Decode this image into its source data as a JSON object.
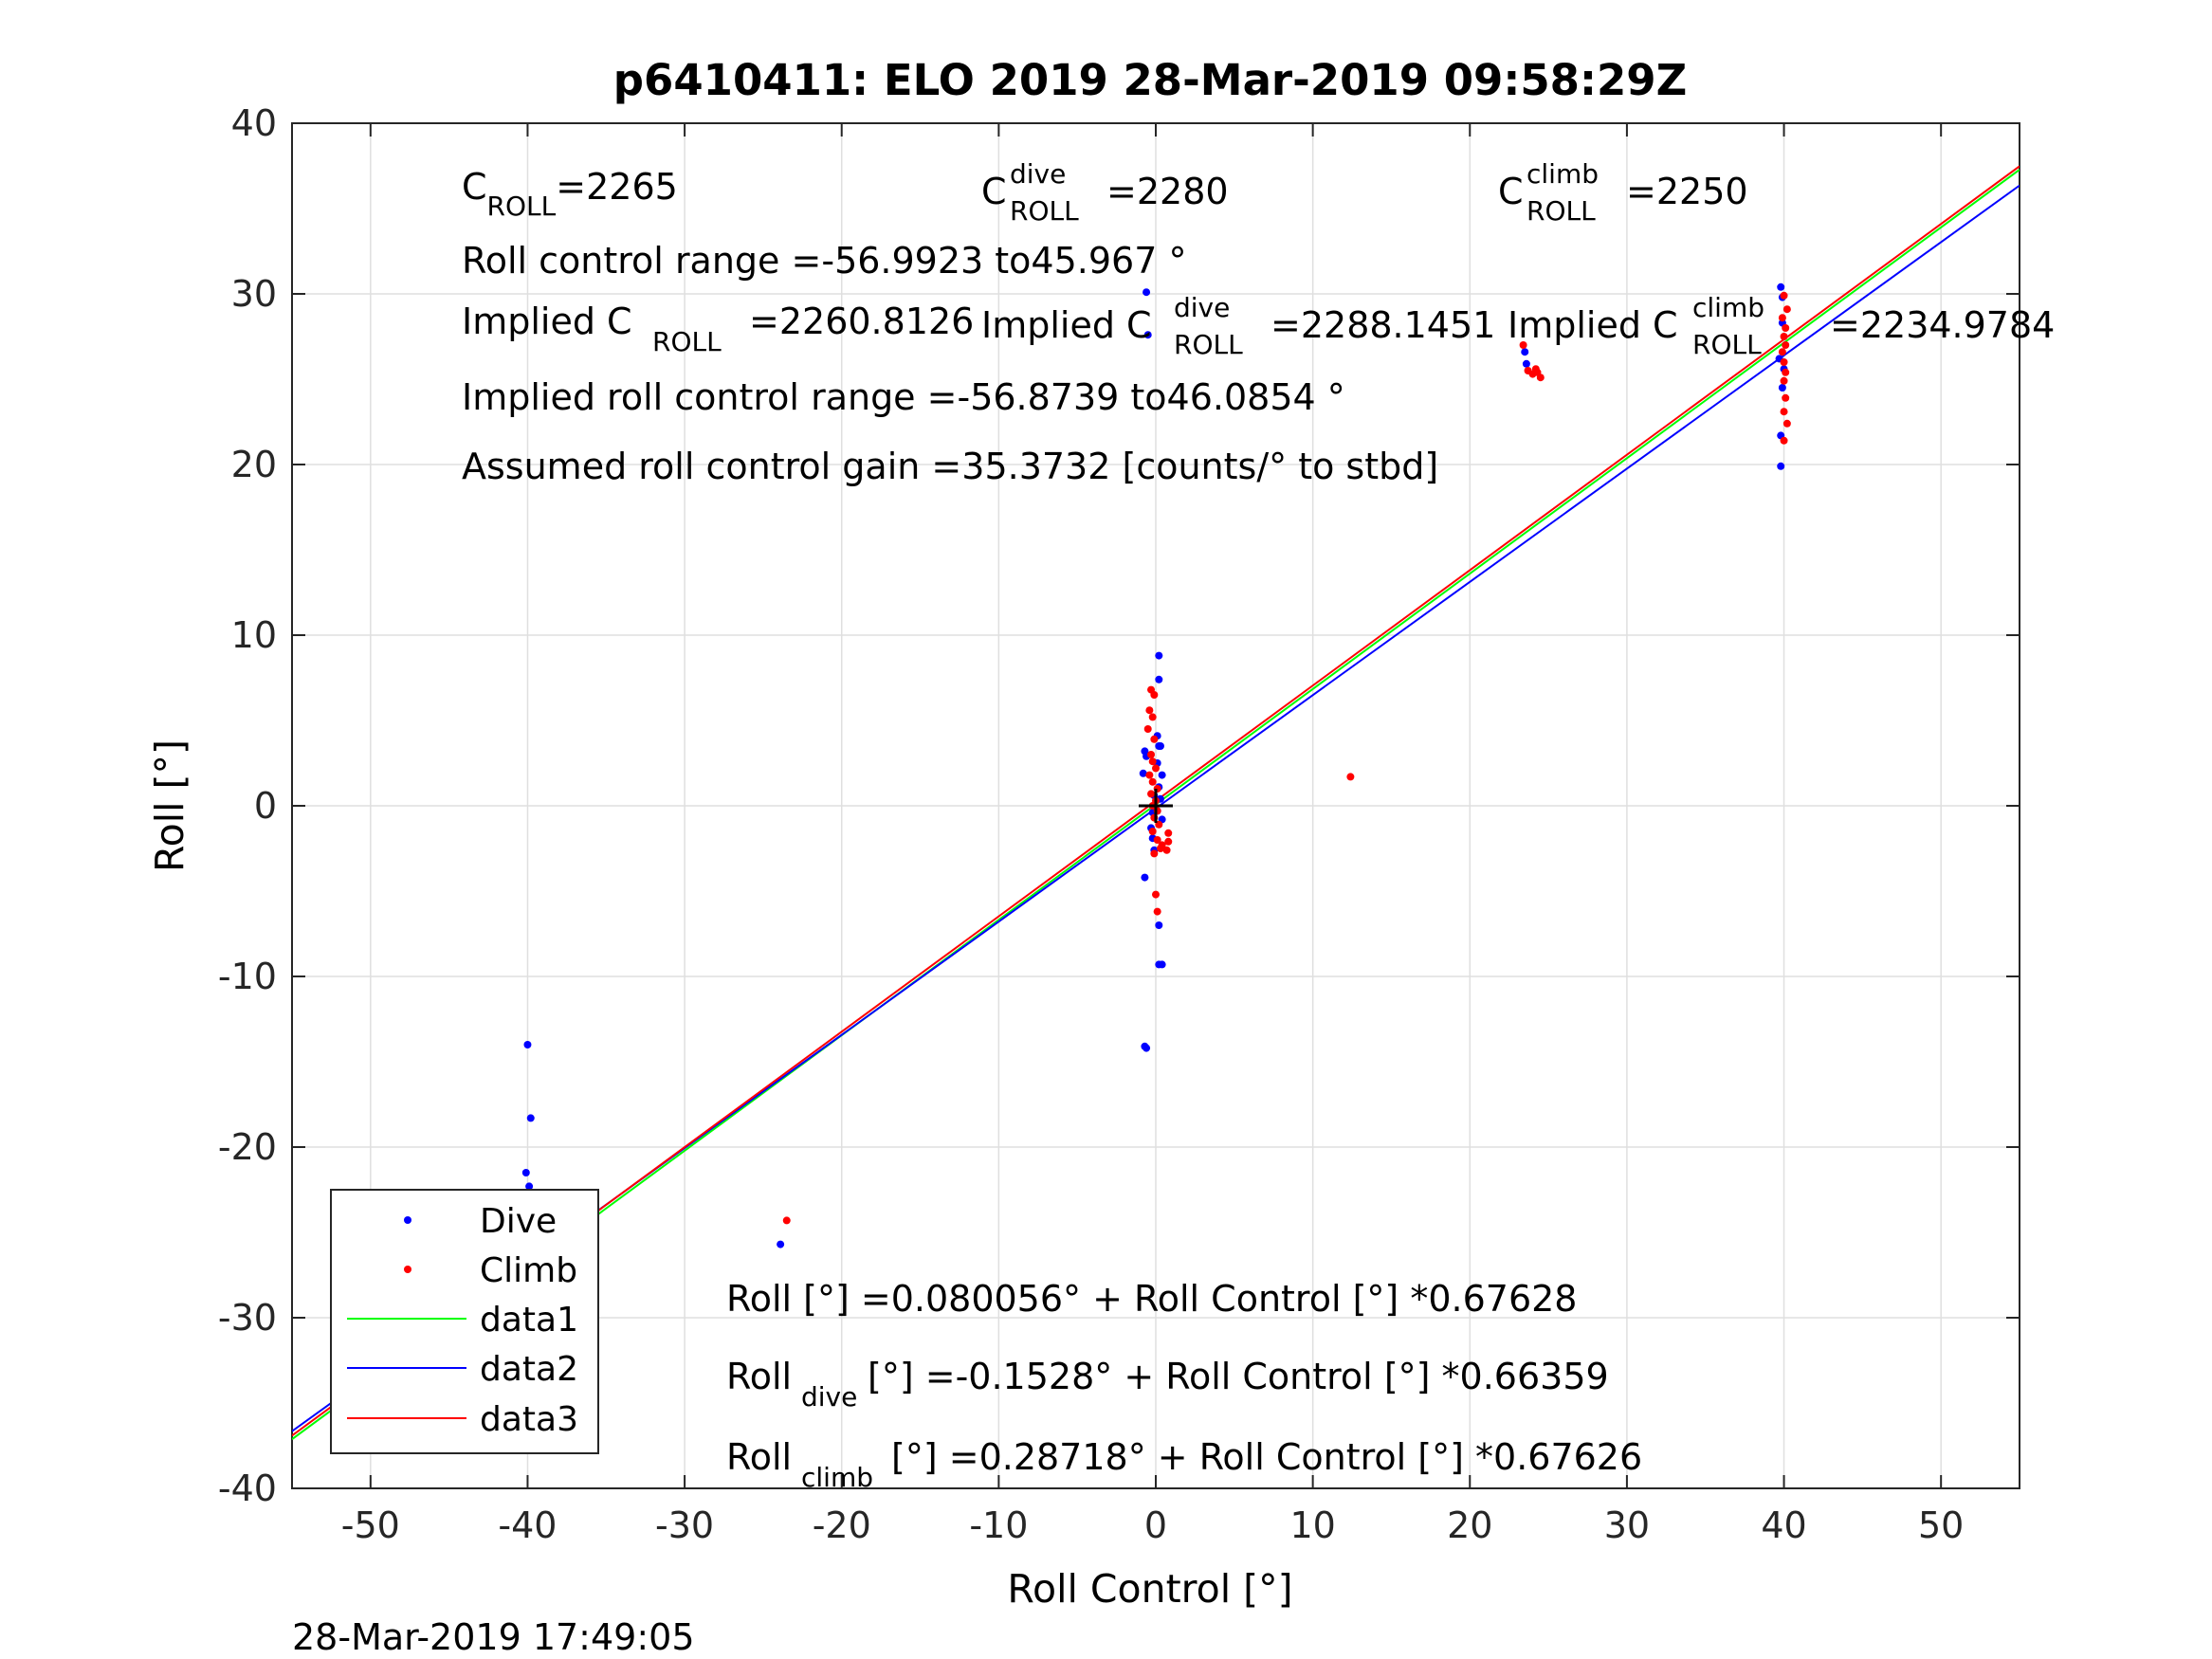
{
  "chart_data": {
    "type": "scatter",
    "title": "p6410411: ELO 2019 28-Mar-2019 09:58:29Z",
    "xlabel": "Roll Control [°]",
    "ylabel": "Roll [°]",
    "xlim": [
      -55,
      55
    ],
    "ylim": [
      -40,
      40
    ],
    "xticks": [
      -50,
      -40,
      -30,
      -20,
      -10,
      0,
      10,
      20,
      30,
      40,
      50
    ],
    "yticks": [
      -40,
      -30,
      -20,
      -10,
      0,
      10,
      20,
      30,
      40
    ],
    "xtick_labels": [
      "-50",
      "-40",
      "-30",
      "-20",
      "-10",
      "0",
      "10",
      "20",
      "30",
      "40",
      "50"
    ],
    "ytick_labels": [
      "-40",
      "-30",
      "-20",
      "-10",
      "0",
      "10",
      "20",
      "30",
      "40"
    ],
    "grid": true,
    "legend_position": "bottom-left",
    "colors": {
      "dive": "#0000ff",
      "climb": "#ff0000",
      "data1": "#00ff00",
      "data2": "#0000ff",
      "data3": "#ff0000"
    },
    "series": [
      {
        "name": "Dive",
        "kind": "points",
        "color": "#0000ff",
        "points": [
          [
            -40.0,
            -14.0
          ],
          [
            -39.8,
            -18.3
          ],
          [
            -40.1,
            -21.5
          ],
          [
            -39.9,
            -22.3
          ],
          [
            -40.0,
            -24.0
          ],
          [
            -39.7,
            -25.0
          ],
          [
            -40.2,
            -26.0
          ],
          [
            -39.9,
            -26.8
          ],
          [
            -40.1,
            -27.3
          ],
          [
            -39.8,
            -27.8
          ],
          [
            -40.0,
            -28.1
          ],
          [
            -23.9,
            -25.7
          ],
          [
            -0.6,
            30.1
          ],
          [
            -0.5,
            27.6
          ],
          [
            -0.7,
            3.2
          ],
          [
            -0.6,
            2.9
          ],
          [
            -0.8,
            1.9
          ],
          [
            -0.1,
            0.6
          ],
          [
            -0.2,
            -0.4
          ],
          [
            -0.3,
            -1.3
          ],
          [
            -0.2,
            -1.9
          ],
          [
            -0.1,
            -2.6
          ],
          [
            -0.7,
            -4.2
          ],
          [
            0.2,
            -7.0
          ],
          [
            0.2,
            -9.3
          ],
          [
            0.4,
            -9.3
          ],
          [
            -0.7,
            -14.1
          ],
          [
            -0.6,
            -14.2
          ],
          [
            0.2,
            8.8
          ],
          [
            0.2,
            7.4
          ],
          [
            0.1,
            4.1
          ],
          [
            0.2,
            3.5
          ],
          [
            0.3,
            3.5
          ],
          [
            0.1,
            2.5
          ],
          [
            0.4,
            1.8
          ],
          [
            0.2,
            1.1
          ],
          [
            0.3,
            0.4
          ],
          [
            0.1,
            -0.3
          ],
          [
            0.4,
            -0.8
          ],
          [
            23.5,
            26.6
          ],
          [
            23.6,
            25.9
          ],
          [
            39.8,
            30.4
          ],
          [
            39.9,
            29.8
          ],
          [
            39.9,
            28.3
          ],
          [
            39.7,
            26.2
          ],
          [
            40.0,
            25.6
          ],
          [
            39.9,
            24.5
          ],
          [
            39.8,
            21.7
          ],
          [
            39.8,
            19.9
          ]
        ]
      },
      {
        "name": "Climb",
        "kind": "points",
        "color": "#ff0000",
        "points": [
          [
            -39.7,
            -23.3
          ],
          [
            -39.9,
            -25.1
          ],
          [
            -40.1,
            -26.0
          ],
          [
            -39.8,
            -26.3
          ],
          [
            -40.0,
            -26.7
          ],
          [
            -39.6,
            -27.0
          ],
          [
            -40.1,
            -27.4
          ],
          [
            -39.8,
            -27.7
          ],
          [
            -39.6,
            -28.2
          ],
          [
            -23.5,
            -24.3
          ],
          [
            12.4,
            1.7
          ],
          [
            -0.3,
            6.8
          ],
          [
            -0.1,
            6.5
          ],
          [
            -0.4,
            5.6
          ],
          [
            -0.2,
            5.2
          ],
          [
            -0.5,
            4.5
          ],
          [
            -0.1,
            3.9
          ],
          [
            -0.3,
            3.0
          ],
          [
            -0.2,
            2.6
          ],
          [
            0.0,
            2.2
          ],
          [
            -0.4,
            1.8
          ],
          [
            -0.2,
            1.4
          ],
          [
            0.1,
            1.0
          ],
          [
            -0.3,
            0.7
          ],
          [
            0.0,
            0.3
          ],
          [
            -0.2,
            0.0
          ],
          [
            0.1,
            -0.3
          ],
          [
            -0.1,
            -0.7
          ],
          [
            0.2,
            -1.1
          ],
          [
            -0.2,
            -1.5
          ],
          [
            0.1,
            -2.0
          ],
          [
            0.3,
            -2.5
          ],
          [
            -0.1,
            -2.8
          ],
          [
            0.0,
            -5.2
          ],
          [
            0.1,
            -6.2
          ],
          [
            0.8,
            -1.6
          ],
          [
            0.8,
            -2.1
          ],
          [
            0.7,
            -2.6
          ],
          [
            0.4,
            -2.3
          ],
          [
            23.4,
            27.0
          ],
          [
            23.7,
            25.5
          ],
          [
            24.0,
            25.3
          ],
          [
            24.2,
            25.6
          ],
          [
            24.3,
            25.4
          ],
          [
            24.5,
            25.1
          ],
          [
            40.0,
            29.9
          ],
          [
            40.2,
            29.1
          ],
          [
            39.9,
            28.6
          ],
          [
            40.1,
            28.0
          ],
          [
            40.0,
            27.5
          ],
          [
            40.1,
            27.0
          ],
          [
            39.9,
            26.6
          ],
          [
            40.0,
            26.0
          ],
          [
            40.1,
            25.4
          ],
          [
            40.0,
            24.9
          ],
          [
            40.1,
            23.9
          ],
          [
            40.0,
            23.1
          ],
          [
            40.2,
            22.4
          ],
          [
            40.0,
            21.4
          ]
        ]
      },
      {
        "name": "data1",
        "kind": "line",
        "color": "#00ff00",
        "x": [
          -55,
          55
        ],
        "y": [
          -37.12,
          37.28
        ]
      },
      {
        "name": "data2",
        "kind": "line",
        "color": "#0000ff",
        "x": [
          -55,
          55
        ],
        "y": [
          -36.65,
          36.35
        ]
      },
      {
        "name": "data3",
        "kind": "line",
        "color": "#ff0000",
        "x": [
          -55,
          55
        ],
        "y": [
          -36.91,
          37.48
        ]
      }
    ],
    "crosshair": {
      "x": 0,
      "y": 0
    },
    "annotations": {
      "c_roll": {
        "base": "C",
        "sub": "ROLL",
        "value": "=2265"
      },
      "c_roll_dive": {
        "base": "C",
        "sup": "dive",
        "sub": "ROLL",
        "value": "=2280"
      },
      "c_roll_climb": {
        "base": "C",
        "sup": "climb",
        "sub": "ROLL",
        "value": "=2250"
      },
      "roll_control_range": "Roll control range =-56.9923 to45.967 °",
      "implied_c_roll": {
        "prefix": "Implied C",
        "sub": "ROLL",
        "value": "=2260.8126"
      },
      "implied_c_roll_dive": {
        "prefix": "Implied C",
        "sup": "dive",
        "sub": "ROLL",
        "value": "=2288.1451"
      },
      "implied_c_roll_climb": {
        "prefix": "Implied C",
        "sup": "climb",
        "sub": "ROLL",
        "value": "=2234.9784"
      },
      "implied_roll_range": "Implied roll control range =-56.8739 to46.0854 °",
      "assumed_gain": "Assumed roll control gain =35.3732 [counts/° to stbd]",
      "fit_all": "Roll [°] =0.080056° + Roll Control [°] *0.67628",
      "fit_dive": {
        "base": "Roll",
        "sub": "dive",
        "rest": " [°] =-0.1528° + Roll Control [°] *0.66359"
      },
      "fit_climb": {
        "base": "Roll",
        "sub": "climb",
        "rest": " [°] =0.28718° + Roll Control [°] *0.67626"
      }
    }
  },
  "timestamp": "28-Mar-2019 17:49:05"
}
